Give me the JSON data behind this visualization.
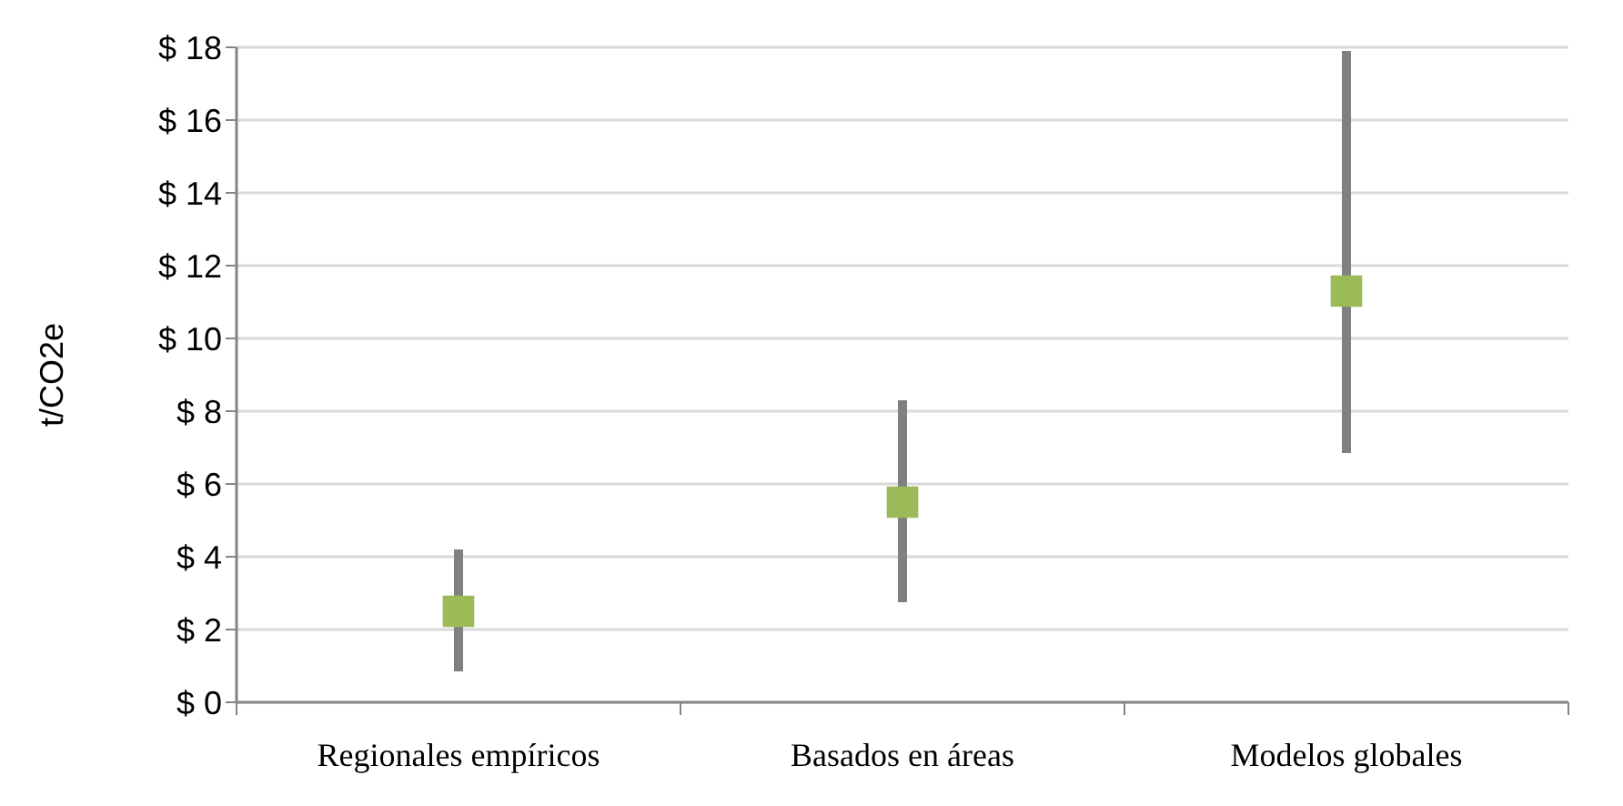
{
  "chart_data": {
    "type": "scatter",
    "ylabel": "t/CO2e",
    "categories": [
      "Regionales empíricos",
      "Basados en áreas",
      "Modelos globales"
    ],
    "series": [
      {
        "color": "#9bbb59",
        "values": [
          2.5,
          5.5,
          11.3
        ],
        "errors": [
          [
            0.85,
            4.2
          ],
          [
            2.75,
            8.3
          ],
          [
            6.85,
            17.9
          ]
        ]
      }
    ],
    "ylim": [
      0,
      18
    ],
    "yticks": [
      {
        "value": 0,
        "label": "$ 0"
      },
      {
        "value": 2,
        "label": "$ 2"
      },
      {
        "value": 4,
        "label": "$ 4"
      },
      {
        "value": 6,
        "label": "$ 6"
      },
      {
        "value": 8,
        "label": "$ 8"
      },
      {
        "value": 10,
        "label": "$ 10"
      },
      {
        "value": 12,
        "label": "$ 12"
      },
      {
        "value": 14,
        "label": "$ 14"
      },
      {
        "value": 16,
        "label": "$ 16"
      },
      {
        "value": 18,
        "label": "$ 18"
      }
    ],
    "grid": "y",
    "marker": "square"
  }
}
